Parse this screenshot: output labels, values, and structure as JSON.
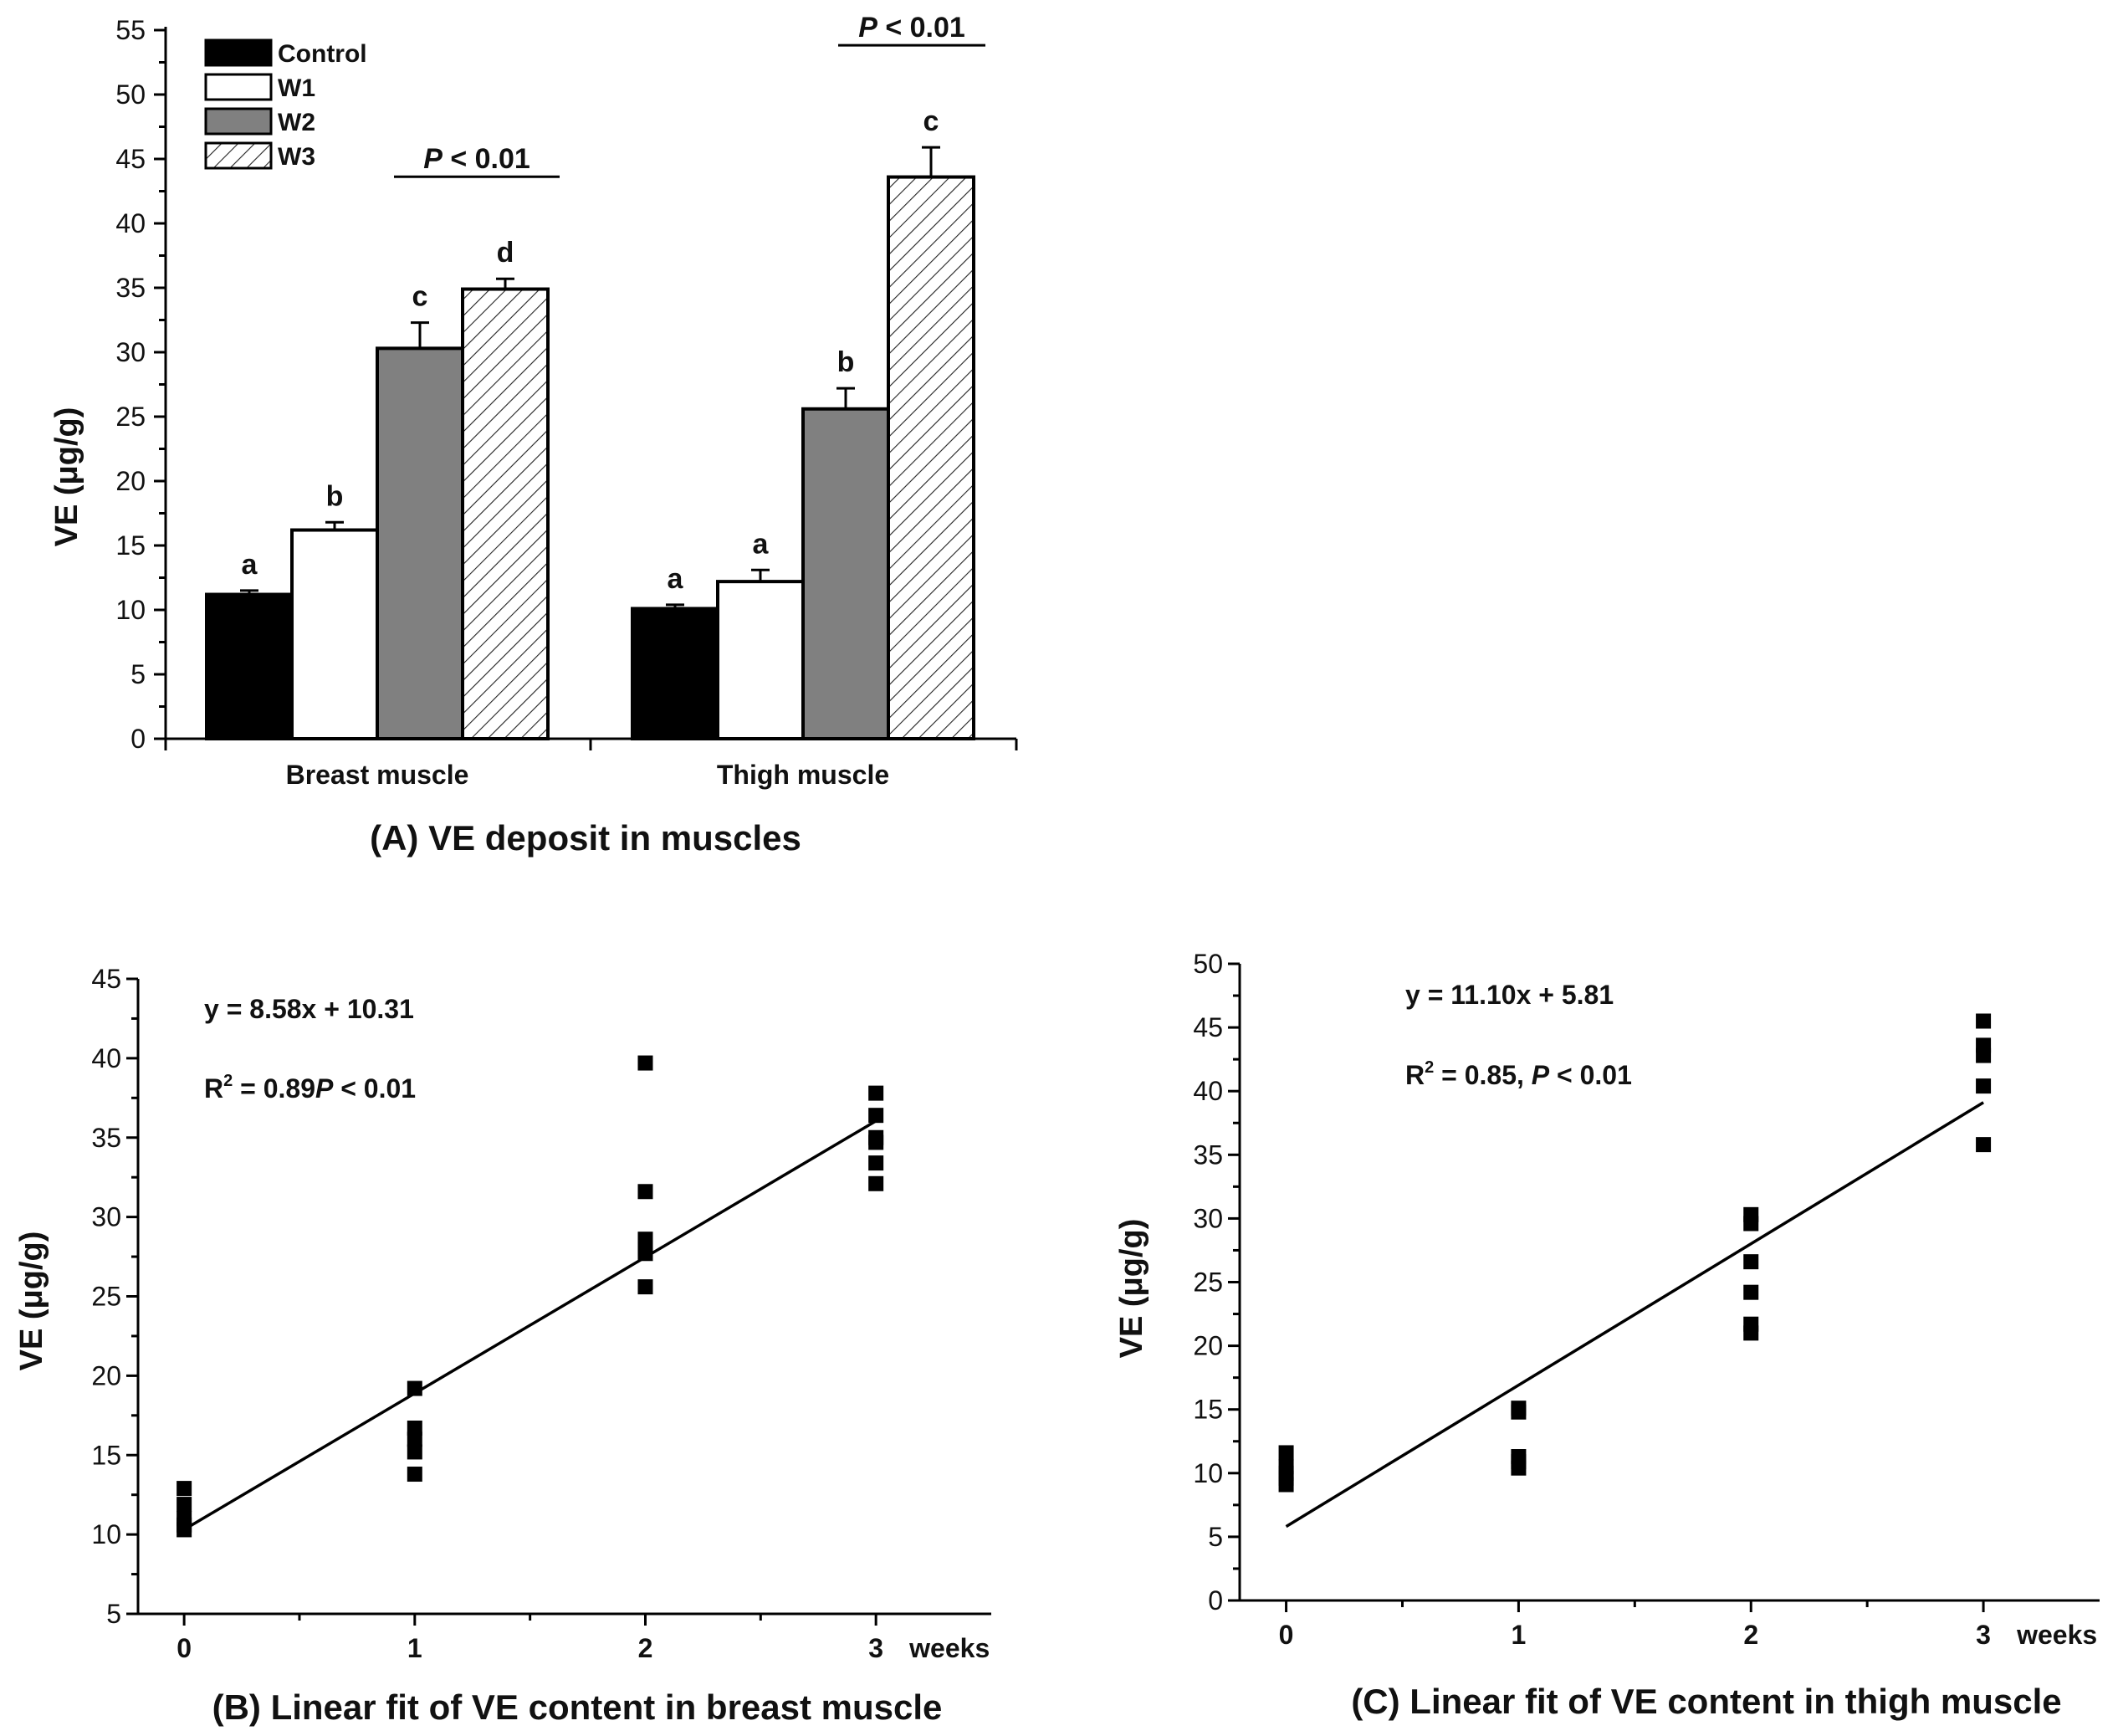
{
  "chart_data": [
    {
      "type": "bar",
      "caption": "(A) VE deposit in muscles",
      "ylabel": "VE (μg/g)",
      "ylim": [
        0,
        55
      ],
      "yticks": [
        0,
        5,
        10,
        15,
        20,
        25,
        30,
        35,
        40,
        45,
        50,
        55
      ],
      "categories": [
        "Breast muscle",
        "Thigh muscle"
      ],
      "series": [
        {
          "name": "Control",
          "color": "#000000",
          "pattern": "solid-black",
          "values": [
            11.2,
            10.1
          ],
          "errors": [
            0.3,
            0.3
          ],
          "letters": [
            "a",
            "a"
          ]
        },
        {
          "name": "W1",
          "color": "#ffffff",
          "pattern": "white",
          "values": [
            16.2,
            12.2
          ],
          "errors": [
            0.6,
            0.9
          ],
          "letters": [
            "b",
            "a"
          ]
        },
        {
          "name": "W2",
          "color": "#808080",
          "pattern": "gray",
          "values": [
            30.3,
            25.6
          ],
          "errors": [
            2.0,
            1.6
          ],
          "letters": [
            "c",
            "b"
          ]
        },
        {
          "name": "W3",
          "color": "#ffffff",
          "pattern": "hatched",
          "values": [
            34.9,
            43.6
          ],
          "errors": [
            0.8,
            2.3
          ],
          "letters": [
            "d",
            "c"
          ]
        }
      ],
      "significance": [
        {
          "p_italic": "P",
          "text": " < 0.01"
        },
        {
          "p_italic": "P",
          "text": " < 0.01"
        }
      ],
      "legend": "top-left"
    },
    {
      "type": "scatter",
      "caption": "(B) Linear fit of VE content in breast muscle",
      "ylabel": "VE (μg/g)",
      "xlim": [
        -0.2,
        3.5
      ],
      "ylim": [
        5,
        45
      ],
      "xticks": [
        0,
        1,
        2,
        3
      ],
      "yticks": [
        5,
        10,
        15,
        20,
        25,
        30,
        35,
        40,
        45
      ],
      "xunit": "weeks",
      "equation": "y = 8.58x + 10.31",
      "r2_text": "R",
      "r2_value": " = 0.89",
      "p_italic": "P",
      "p_text": " < 0.01",
      "fit": {
        "slope": 8.58,
        "intercept": 10.31
      },
      "x": [
        0,
        0,
        0,
        0,
        0,
        1,
        1,
        1,
        1,
        1,
        2,
        2,
        2,
        2,
        2,
        2,
        3,
        3,
        3,
        3,
        3,
        3
      ],
      "y": [
        12.9,
        11.9,
        11.0,
        10.6,
        10.3,
        19.2,
        16.7,
        16.0,
        15.2,
        13.8,
        39.7,
        31.6,
        28.6,
        28.0,
        27.7,
        25.6,
        37.8,
        36.4,
        35.0,
        34.7,
        33.4,
        32.1
      ]
    },
    {
      "type": "scatter",
      "caption": "(C) Linear fit of VE content in thigh muscle",
      "ylabel": "VE (μg/g)",
      "xlim": [
        -0.2,
        3.5
      ],
      "ylim": [
        0,
        50
      ],
      "xticks": [
        0,
        1,
        2,
        3
      ],
      "yticks": [
        0,
        5,
        10,
        15,
        20,
        25,
        30,
        35,
        40,
        45,
        50
      ],
      "xunit": "weeks",
      "equation": "y = 11.10x + 5.81",
      "r2_text": "R",
      "r2_value": " = 0.85, ",
      "p_italic": "P",
      "p_text": " < 0.01",
      "fit": {
        "slope": 11.1,
        "intercept": 5.81
      },
      "x": [
        0,
        0,
        0,
        0,
        0,
        1,
        1,
        1,
        1,
        1,
        2,
        2,
        2,
        2,
        2,
        2,
        3,
        3,
        3,
        3,
        3
      ],
      "y": [
        11.6,
        10.5,
        10.0,
        9.6,
        9.1,
        15.1,
        14.8,
        11.3,
        10.9,
        10.4,
        30.3,
        29.6,
        26.6,
        24.2,
        21.7,
        21.0,
        45.5,
        43.6,
        42.8,
        40.4,
        35.8
      ]
    }
  ]
}
